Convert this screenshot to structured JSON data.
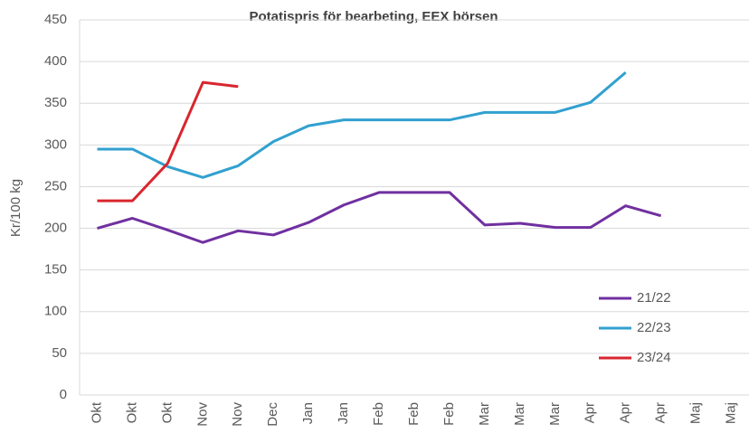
{
  "chart_data": {
    "type": "line",
    "title": "Potatispris för bearbeting, EEX börsen",
    "ylabel": "Kr/100 kg",
    "categories": [
      "Okt",
      "Okt",
      "Okt",
      "Nov",
      "Nov",
      "Dec",
      "Jan",
      "Jan",
      "Feb",
      "Feb",
      "Feb",
      "Mar",
      "Mar",
      "Mar",
      "Apr",
      "Apr",
      "Apr",
      "Maj",
      "Maj"
    ],
    "series": [
      {
        "name": "21/22",
        "color": "#7030a0",
        "values": [
          200,
          212,
          198,
          183,
          197,
          192,
          207,
          228,
          243,
          243,
          243,
          204,
          206,
          201,
          201,
          227,
          215,
          null,
          null
        ]
      },
      {
        "name": "22/23",
        "color": "#31a0d0",
        "values": [
          295,
          295,
          274,
          261,
          275,
          304,
          323,
          330,
          330,
          330,
          330,
          339,
          339,
          339,
          351,
          387,
          null,
          null,
          null
        ]
      },
      {
        "name": "23/24",
        "color": "#d9262e",
        "values": [
          233,
          233,
          278,
          375,
          370,
          null,
          null,
          null,
          null,
          null,
          null,
          null,
          null,
          null,
          null,
          null,
          null,
          null,
          null
        ]
      }
    ],
    "ylim": [
      0,
      450
    ],
    "yticks": [
      0,
      50,
      100,
      150,
      200,
      250,
      300,
      350,
      400,
      450
    ],
    "grid": true
  }
}
